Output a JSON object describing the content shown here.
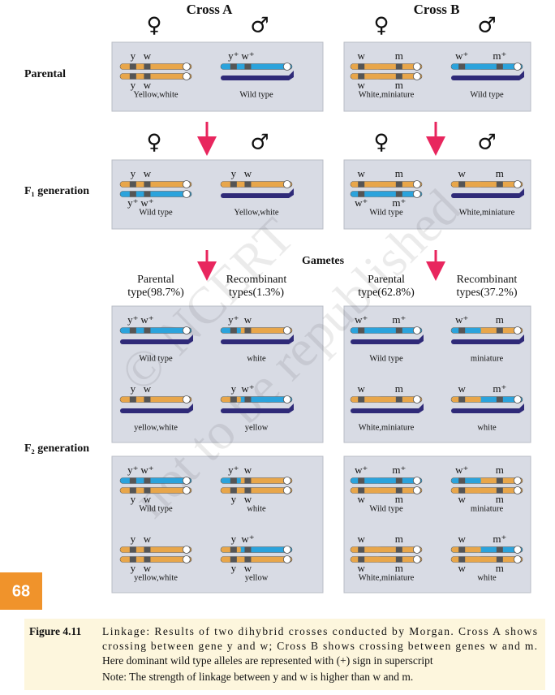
{
  "watermark": [
    "© NCERT",
    "not to be republished"
  ],
  "row_labels": {
    "parental": "Parental",
    "f1": "F₁ generation",
    "f2": "F₂ generation"
  },
  "symbols": {
    "female": "♀",
    "male": "♂"
  },
  "gametes_label": "Gametes",
  "page_number": "68",
  "crosses": [
    {
      "title": "Cross A",
      "parental": {
        "female": {
          "top": [
            "y",
            "w"
          ],
          "bottom": [
            "y",
            "w"
          ],
          "caption": "Yellow,white"
        },
        "male": {
          "top": [
            "y⁺",
            "w⁺"
          ],
          "caption": "Wild type"
        }
      },
      "f1": {
        "female": {
          "top": [
            "y",
            "w"
          ],
          "bottom": [
            "y⁺",
            "w⁺"
          ],
          "caption": "Wild type"
        },
        "male": {
          "top": [
            "y",
            "w"
          ],
          "caption": "Yellow,white"
        }
      },
      "gamete_headers": [
        [
          "Parental",
          "type(98.7%)"
        ],
        [
          "Recombinant",
          "types(1.3%)"
        ]
      ],
      "f2_male": [
        {
          "top": [
            "y⁺",
            "w⁺"
          ],
          "caption": "Wild type"
        },
        {
          "top": [
            "y⁺",
            "w"
          ],
          "caption": "white"
        },
        {
          "top": [
            "y",
            "w"
          ],
          "caption": "yellow,white"
        },
        {
          "top": [
            "y",
            "w⁺"
          ],
          "caption": "yellow"
        }
      ],
      "f2_female": [
        {
          "top": [
            "y⁺",
            "w⁺"
          ],
          "bottom": [
            "y",
            "w"
          ],
          "caption": "Wild type"
        },
        {
          "top": [
            "y⁺",
            "w"
          ],
          "bottom": [
            "y",
            "w"
          ],
          "caption": "white"
        },
        {
          "top": [
            "y",
            "w"
          ],
          "bottom": [
            "y",
            "w"
          ],
          "caption": "yellow,white"
        },
        {
          "top": [
            "y",
            "w⁺"
          ],
          "bottom": [
            "y",
            "w"
          ],
          "caption": "yellow"
        }
      ]
    },
    {
      "title": "Cross B",
      "parental": {
        "female": {
          "top": [
            "w",
            "m"
          ],
          "bottom": [
            "w",
            "m"
          ],
          "caption": "White,miniature"
        },
        "male": {
          "top": [
            "w⁺",
            "m⁺"
          ],
          "caption": "Wild type"
        }
      },
      "f1": {
        "female": {
          "top": [
            "w",
            "m"
          ],
          "bottom": [
            "w⁺",
            "m⁺"
          ],
          "caption": "Wild type"
        },
        "male": {
          "top": [
            "w",
            "m"
          ],
          "caption": "White,miniature"
        }
      },
      "gamete_headers": [
        [
          "Parental",
          "type(62.8%)"
        ],
        [
          "Recombinant",
          "types(37.2%)"
        ]
      ],
      "f2_male": [
        {
          "top": [
            "w⁺",
            "m⁺"
          ],
          "caption": "Wild type"
        },
        {
          "top": [
            "w⁺",
            "m"
          ],
          "caption": "miniature"
        },
        {
          "top": [
            "w",
            "m"
          ],
          "caption": "White,miniature"
        },
        {
          "top": [
            "w",
            "m⁺"
          ],
          "caption": "white"
        }
      ],
      "f2_female": [
        {
          "top": [
            "w⁺",
            "m⁺"
          ],
          "bottom": [
            "w",
            "m"
          ],
          "caption": "Wild type"
        },
        {
          "top": [
            "w⁺",
            "m"
          ],
          "bottom": [
            "w",
            "m"
          ],
          "caption": "miniature"
        },
        {
          "top": [
            "w",
            "m"
          ],
          "bottom": [
            "w",
            "m"
          ],
          "caption": "White,miniature"
        },
        {
          "top": [
            "w",
            "m⁺"
          ],
          "bottom": [
            "w",
            "m"
          ],
          "caption": "white"
        }
      ]
    }
  ],
  "caption": {
    "label": "Figure 4.11",
    "lines": [
      "Linkage: Results of two dihybrid crosses conducted by Morgan. Cross A shows",
      "crossing between gene y and w; Cross B shows crossing between genes w and m.",
      "Here dominant wild type alleles are represented with (+) sign in superscript"
    ],
    "note": "Note: The strength of linkage between y and w is higher than w and m."
  }
}
